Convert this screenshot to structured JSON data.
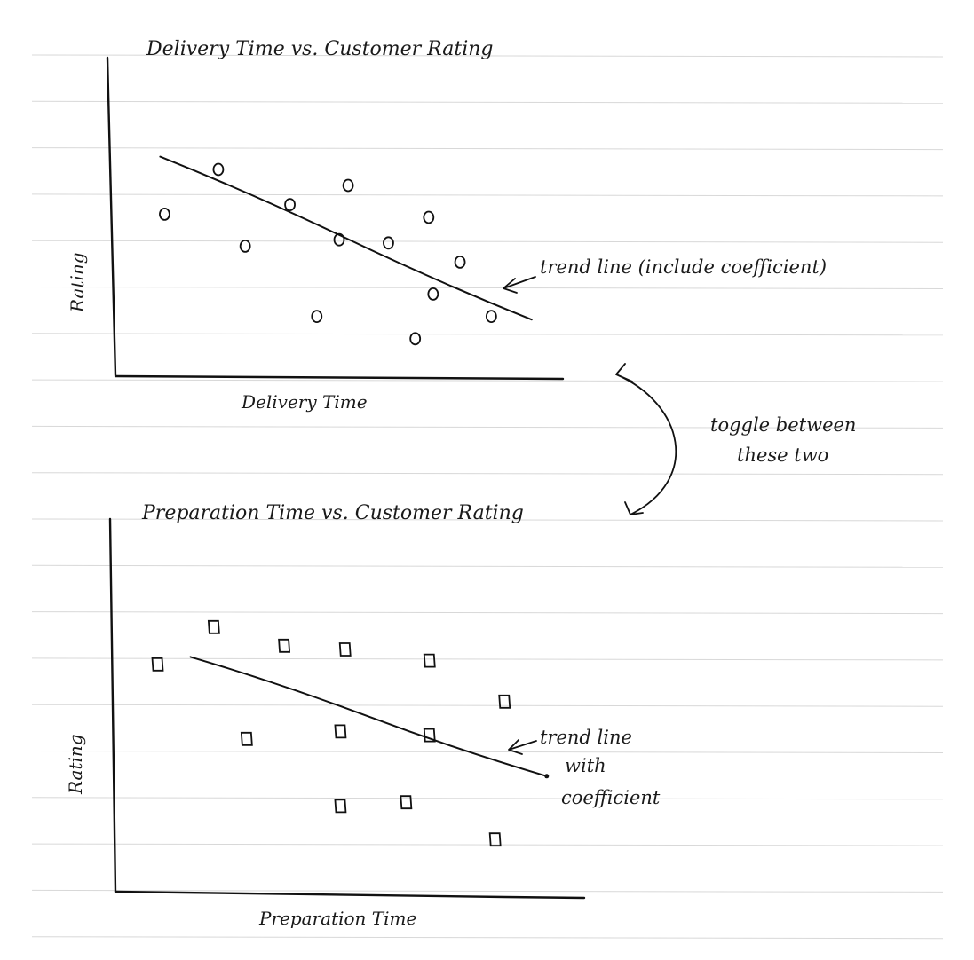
{
  "chart_data": [
    {
      "type": "scatter",
      "title": "Delivery Time vs. Customer Rating",
      "xlabel": "Delivery Time",
      "ylabel": "Rating",
      "marker": "circle",
      "xlim": [
        0,
        10
      ],
      "ylim": [
        0,
        10
      ],
      "grid": false,
      "points": [
        {
          "x": 1.1,
          "y": 5.1
        },
        {
          "x": 2.3,
          "y": 6.5
        },
        {
          "x": 2.9,
          "y": 4.1
        },
        {
          "x": 3.9,
          "y": 5.4
        },
        {
          "x": 4.5,
          "y": 1.9
        },
        {
          "x": 5.0,
          "y": 4.3
        },
        {
          "x": 5.2,
          "y": 6.0
        },
        {
          "x": 6.1,
          "y": 4.2
        },
        {
          "x": 7.0,
          "y": 5.0
        },
        {
          "x": 6.7,
          "y": 1.2
        },
        {
          "x": 7.1,
          "y": 2.6
        },
        {
          "x": 7.7,
          "y": 3.6
        },
        {
          "x": 8.4,
          "y": 1.9
        }
      ],
      "trend": {
        "x": [
          1.0,
          9.3
        ],
        "y": [
          6.9,
          1.8
        ]
      },
      "annotation": "trend line (include coefficient)"
    },
    {
      "type": "scatter",
      "title": "Preparation Time vs. Customer Rating",
      "xlabel": "Preparation Time",
      "ylabel": "Rating",
      "marker": "square",
      "xlim": [
        0,
        10
      ],
      "ylim": [
        0,
        10
      ],
      "grid": false,
      "points": [
        {
          "x": 0.9,
          "y": 6.1
        },
        {
          "x": 2.1,
          "y": 7.1
        },
        {
          "x": 2.8,
          "y": 4.1
        },
        {
          "x": 3.6,
          "y": 6.6
        },
        {
          "x": 4.8,
          "y": 2.3
        },
        {
          "x": 4.8,
          "y": 4.3
        },
        {
          "x": 4.9,
          "y": 6.5
        },
        {
          "x": 6.2,
          "y": 2.4
        },
        {
          "x": 6.7,
          "y": 6.2
        },
        {
          "x": 6.7,
          "y": 4.2
        },
        {
          "x": 8.1,
          "y": 1.4
        },
        {
          "x": 8.3,
          "y": 5.1
        }
      ],
      "trend": {
        "x": [
          1.6,
          9.2
        ],
        "y": [
          6.3,
          3.1
        ]
      },
      "annotation": "trend line with coefficient"
    }
  ],
  "toggle_note": "toggle between these two"
}
